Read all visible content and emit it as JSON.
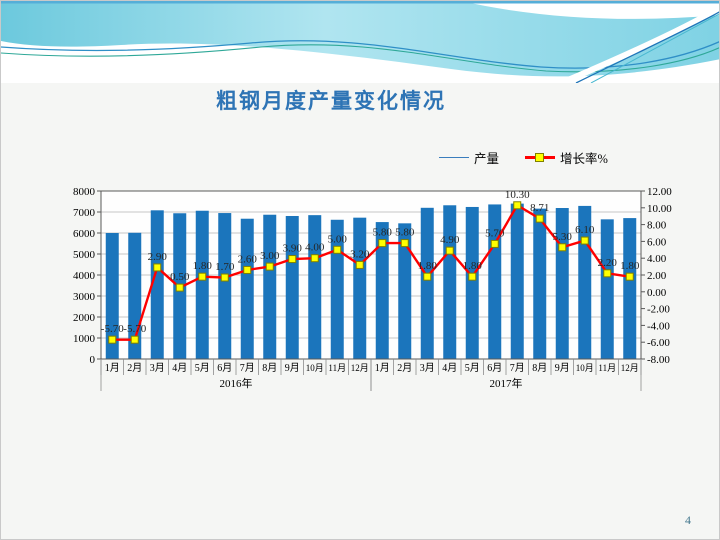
{
  "slide": {
    "page_number": "4"
  },
  "title": "粗钢月度产量变化情况",
  "legend": [
    {
      "label": "产量",
      "color": "#3a7dbd"
    },
    {
      "label": "增长率%",
      "color": "#ff0000",
      "marker_color": "#ffff00"
    }
  ],
  "chart_data": {
    "type": "combo-bar-line",
    "title": "粗钢月度产量变化情况",
    "categories": [
      "1月",
      "2月",
      "3月",
      "4月",
      "5月",
      "6月",
      "7月",
      "8月",
      "9月",
      "10月",
      "11月",
      "12月",
      "1月",
      "2月",
      "3月",
      "4月",
      "5月",
      "6月",
      "7月",
      "8月",
      "9月",
      "10月",
      "11月",
      "12月"
    ],
    "year_groups": [
      {
        "label": "2016年",
        "start": 0,
        "span": 12
      },
      {
        "label": "2017年",
        "start": 12,
        "span": 12
      }
    ],
    "series": [
      {
        "name": "产量",
        "type": "bar",
        "axis": "left",
        "color": "#1B75BC",
        "values": [
          6000,
          6010,
          7080,
          6940,
          7060,
          6950,
          6680,
          6870,
          6810,
          6850,
          6630,
          6730,
          6520,
          6460,
          7200,
          7320,
          7240,
          7360,
          7400,
          7160,
          7190,
          7290,
          6650,
          6710
        ]
      },
      {
        "name": "增长率%",
        "type": "line",
        "axis": "right",
        "color": "#FF0000",
        "marker_color": "#FFFF00",
        "marker_border": "#808000",
        "values": [
          -5.7,
          -5.7,
          2.9,
          0.5,
          1.8,
          1.7,
          2.6,
          3.0,
          3.9,
          4.0,
          5.0,
          3.2,
          5.8,
          5.8,
          1.8,
          4.9,
          1.8,
          5.7,
          10.3,
          8.71,
          5.3,
          6.1,
          2.2,
          1.8
        ],
        "labels": [
          "-5.70",
          "-5.70",
          "2.90",
          "0.50",
          "1.80",
          "1.70",
          "2.60",
          "3.00",
          "3.90",
          "4.00",
          "5.00",
          "3.20",
          "5.80",
          "5.80",
          "1.80",
          "4.90",
          "1.80",
          "5.70",
          "10.30",
          "8.71",
          "5.30",
          "6.10",
          "2.20",
          "1.80"
        ]
      }
    ],
    "left_axis": {
      "min": 0,
      "max": 8000,
      "step": 1000
    },
    "right_axis": {
      "min": -8,
      "max": 12,
      "step": 2,
      "labels": [
        "12.00",
        "10.00",
        "8.00",
        "6.00",
        "4.00",
        "2.00",
        "0.00",
        "-2.00",
        "-4.00",
        "-6.00",
        "-8.00"
      ]
    },
    "grid": true,
    "legend_position": "top-right"
  }
}
